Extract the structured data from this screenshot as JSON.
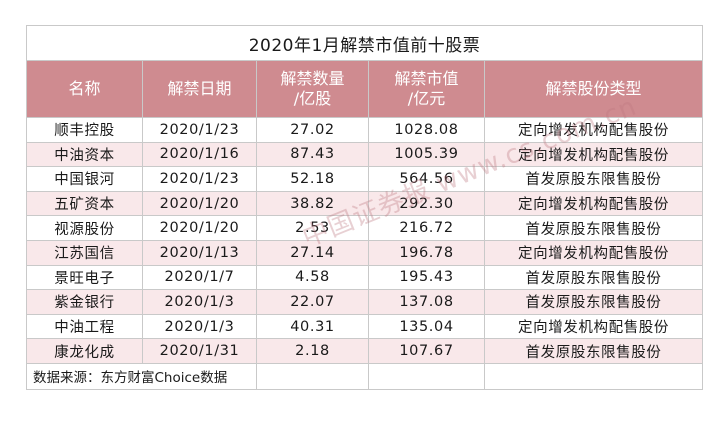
{
  "table": {
    "title": "2020年1月解禁市值前十股票",
    "headers": {
      "name": "名称",
      "date": "解禁日期",
      "qty_line1": "解禁数量",
      "qty_line2": "/亿股",
      "value_line1": "解禁市值",
      "value_line2": "/亿元",
      "type": "解禁股份类型"
    },
    "rows": [
      {
        "name": "顺丰控股",
        "date": "2020/1/23",
        "qty": "27.02",
        "value": "1028.08",
        "type": "定向增发机构配售股份"
      },
      {
        "name": "中油资本",
        "date": "2020/1/16",
        "qty": "87.43",
        "value": "1005.39",
        "type": "定向增发机构配售股份"
      },
      {
        "name": "中国银河",
        "date": "2020/1/23",
        "qty": "52.18",
        "value": "564.56",
        "type": "首发原股东限售股份"
      },
      {
        "name": "五矿资本",
        "date": "2020/1/20",
        "qty": "38.82",
        "value": "292.30",
        "type": "定向增发机构配售股份"
      },
      {
        "name": "视源股份",
        "date": "2020/1/20",
        "qty": "2.53",
        "value": "216.72",
        "type": "首发原股东限售股份"
      },
      {
        "name": "江苏国信",
        "date": "2020/1/13",
        "qty": "27.14",
        "value": "196.78",
        "type": "定向增发机构配售股份"
      },
      {
        "name": "景旺电子",
        "date": "2020/1/7",
        "qty": "4.58",
        "value": "195.43",
        "type": "首发原股东限售股份"
      },
      {
        "name": "紫金银行",
        "date": "2020/1/3",
        "qty": "22.07",
        "value": "137.08",
        "type": "首发原股东限售股份"
      },
      {
        "name": "中油工程",
        "date": "2020/1/3",
        "qty": "40.31",
        "value": "135.04",
        "type": "定向增发机构配售股份"
      },
      {
        "name": "康龙化成",
        "date": "2020/1/31",
        "qty": "2.18",
        "value": "107.67",
        "type": "首发原股东限售股份"
      }
    ],
    "source": "数据来源：东方财富Choice数据"
  },
  "watermark": "中国证券报 www.cs.com.cn"
}
